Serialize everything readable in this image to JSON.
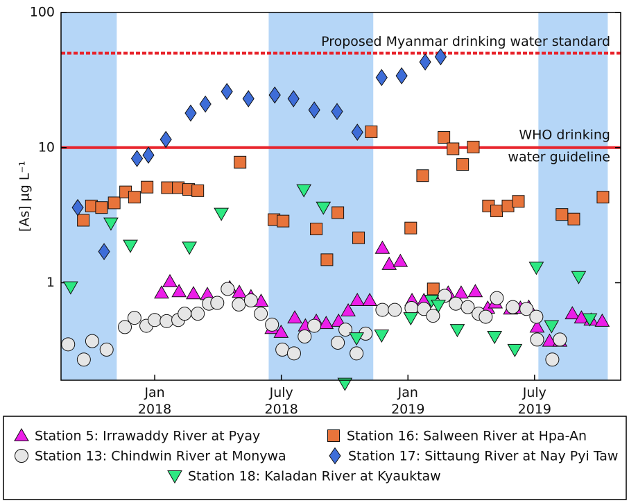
{
  "chart_data": {
    "type": "scatter",
    "y_label": "[As] µg L⁻¹",
    "log_y": true,
    "xlim": [
      2017.63,
      2019.84
    ],
    "ylim": [
      0.19,
      100
    ],
    "xticks": [
      {
        "value": 2018.0,
        "label": "Jan 2018"
      },
      {
        "value": 2018.5,
        "label": "July 2018"
      },
      {
        "value": 2019.0,
        "label": "Jan 2019"
      },
      {
        "value": 2019.5,
        "label": "July 2019"
      }
    ],
    "yticks": [
      1,
      10,
      100
    ],
    "shaded_periods": [
      [
        2017.63,
        2017.85
      ],
      [
        2018.45,
        2018.863
      ],
      [
        2019.515,
        2019.789
      ]
    ],
    "shade_color": "#b5d6f7",
    "reference_lines": [
      {
        "value": 50,
        "color": "#e8242c",
        "style": "dashed",
        "label": [
          "Proposed Myanmar drinking water standard"
        ]
      },
      {
        "value": 10,
        "color": "#e8242c",
        "style": "solid",
        "label": [
          "WHO drinking",
          "water guideline"
        ]
      }
    ],
    "series": [
      {
        "name": "Station 5: Irrawaddy River at Pyay",
        "color": "#ec1ee8",
        "marker": "triangle-up",
        "x": [
          2018.027,
          2018.06,
          2018.096,
          2018.153,
          2018.208,
          2018.296,
          2018.334,
          2018.38,
          2018.42,
          2018.463,
          2018.499,
          2018.553,
          2018.595,
          2018.638,
          2018.677,
          2018.726,
          2018.764,
          2018.8,
          2018.849,
          2018.899,
          2018.926,
          2018.97,
          2019.016,
          2019.063,
          2019.112,
          2019.159,
          2019.21,
          2019.266,
          2019.315,
          2019.345,
          2019.405,
          2019.444,
          2019.477,
          2019.51,
          2019.559,
          2019.6,
          2019.649,
          2019.685,
          2019.723,
          2019.767
        ],
        "values": [
          0.84,
          1.02,
          0.86,
          0.83,
          0.82,
          0.92,
          0.85,
          0.79,
          0.73,
          0.46,
          0.43,
          0.55,
          0.48,
          0.52,
          0.5,
          0.52,
          0.62,
          0.74,
          0.74,
          1.8,
          1.37,
          1.44,
          0.74,
          0.74,
          0.83,
          0.84,
          0.84,
          0.86,
          0.65,
          0.71,
          0.64,
          0.65,
          0.66,
          0.47,
          0.37,
          0.37,
          0.59,
          0.55,
          0.53,
          0.52
        ]
      },
      {
        "name": "Station 16: Salween River at Hpa-An",
        "color": "#e8743b",
        "marker": "square",
        "x": [
          2017.718,
          2017.75,
          2017.79,
          2017.84,
          2017.885,
          2017.92,
          2017.97,
          2018.05,
          2018.093,
          2018.134,
          2018.17,
          2018.337,
          2018.471,
          2018.507,
          2018.638,
          2018.68,
          2018.723,
          2018.805,
          2018.855,
          2019.011,
          2019.058,
          2019.1,
          2019.142,
          2019.178,
          2019.216,
          2019.258,
          2019.318,
          2019.35,
          2019.395,
          2019.436,
          2019.608,
          2019.655,
          2019.77
        ],
        "values": [
          2.9,
          3.7,
          3.6,
          3.9,
          4.7,
          4.3,
          5.1,
          5.05,
          5.05,
          4.9,
          4.8,
          7.8,
          2.93,
          2.86,
          2.5,
          1.48,
          3.3,
          2.15,
          13.1,
          2.54,
          6.2,
          0.9,
          11.9,
          9.8,
          7.5,
          10.1,
          3.7,
          3.4,
          3.7,
          4.0,
          3.2,
          2.96,
          4.3
        ]
      },
      {
        "name": "Station 13: Chindwin River at Monywa",
        "color": "#e6e6e6",
        "marker": "circle",
        "x": [
          2017.658,
          2017.72,
          2017.753,
          2017.81,
          2017.882,
          2017.92,
          2017.967,
          2018.0,
          2018.047,
          2018.093,
          2018.118,
          2018.17,
          2018.214,
          2018.247,
          2018.288,
          2018.332,
          2018.38,
          2018.419,
          2018.463,
          2018.504,
          2018.55,
          2018.592,
          2018.63,
          2018.723,
          2018.753,
          2018.797,
          2018.833,
          2018.899,
          2018.948,
          2019.014,
          2019.063,
          2019.099,
          2019.145,
          2019.189,
          2019.236,
          2019.279,
          2019.307,
          2019.351,
          2019.414,
          2019.468,
          2019.507,
          2019.51,
          2019.57,
          2019.6
        ],
        "values": [
          0.35,
          0.27,
          0.37,
          0.32,
          0.47,
          0.55,
          0.48,
          0.53,
          0.52,
          0.53,
          0.59,
          0.59,
          0.7,
          0.71,
          0.9,
          0.69,
          0.74,
          0.59,
          0.49,
          0.32,
          0.3,
          0.4,
          0.48,
          0.36,
          0.45,
          0.3,
          0.42,
          0.63,
          0.63,
          0.65,
          0.64,
          0.57,
          0.8,
          0.7,
          0.66,
          0.59,
          0.56,
          0.77,
          0.66,
          0.64,
          0.56,
          0.38,
          0.27,
          0.38
        ]
      },
      {
        "name": "Station 17: Sittaung River at Nay Pyi Taw",
        "color": "#3e6dd8",
        "marker": "diamond",
        "x": [
          2017.696,
          2017.8,
          2017.93,
          2017.975,
          2018.044,
          2018.142,
          2018.2,
          2018.285,
          2018.37,
          2018.474,
          2018.548,
          2018.63,
          2018.72,
          2018.8,
          2018.896,
          2018.975,
          2019.068,
          2019.129
        ],
        "values": [
          3.6,
          1.7,
          8.3,
          8.8,
          11.5,
          18,
          21,
          26,
          23,
          24.5,
          23,
          19,
          18.5,
          13,
          33,
          34,
          43,
          47
        ]
      },
      {
        "name": "Station 18: Kaladan River at Kyauktaw",
        "color": "#2ee882",
        "marker": "triangle-down",
        "x": [
          2017.668,
          2017.827,
          2017.904,
          2018.137,
          2018.263,
          2018.589,
          2018.666,
          2018.751,
          2018.797,
          2018.896,
          2019.011,
          2019.093,
          2019.12,
          2019.195,
          2019.342,
          2019.422,
          2019.507,
          2019.567,
          2019.674,
          2019.718
        ],
        "values": [
          0.93,
          2.76,
          1.89,
          1.83,
          3.26,
          4.87,
          3.62,
          0.18,
          0.39,
          0.41,
          0.55,
          0.74,
          0.68,
          0.45,
          0.4,
          0.32,
          1.3,
          0.48,
          1.11,
          0.54
        ]
      }
    ]
  }
}
